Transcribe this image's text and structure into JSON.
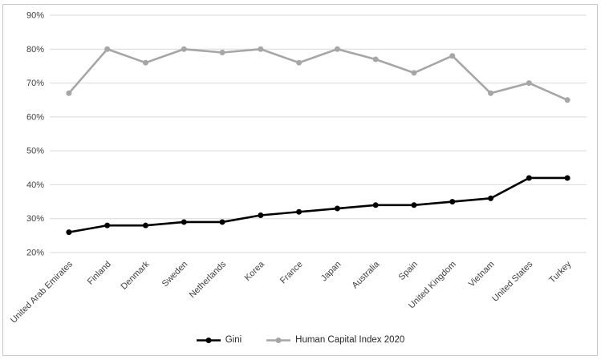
{
  "chart_data": {
    "type": "line",
    "categories": [
      "United Arab Emirates",
      "Finland",
      "Denmark",
      "Sweden",
      "Netherlands",
      "Korea",
      "France",
      "Japan",
      "Australia",
      "Spain",
      "United Kingdom",
      "Vietnam",
      "United States",
      "Turkey"
    ],
    "series": [
      {
        "name": "Gini",
        "color": "#000000",
        "values": [
          26,
          28,
          28,
          29,
          29,
          31,
          32,
          33,
          34,
          34,
          35,
          36,
          42,
          42
        ]
      },
      {
        "name": "Human Capital Index 2020",
        "color": "#a6a6a6",
        "values": [
          67,
          80,
          76,
          80,
          79,
          80,
          76,
          80,
          77,
          73,
          78,
          67,
          70,
          65
        ]
      }
    ],
    "ylim": [
      20,
      90
    ],
    "ytick_step": 10,
    "ytick_labels": [
      "20%",
      "30%",
      "40%",
      "50%",
      "60%",
      "70%",
      "80%",
      "90%"
    ],
    "grid": true,
    "legend_position": "bottom",
    "x_label_rotation_deg": -45
  },
  "colors": {
    "gridline": "#d9d9d9",
    "axis_text": "#3f3f3f",
    "frame_border": "#c9c9c9",
    "background": "#ffffff"
  }
}
